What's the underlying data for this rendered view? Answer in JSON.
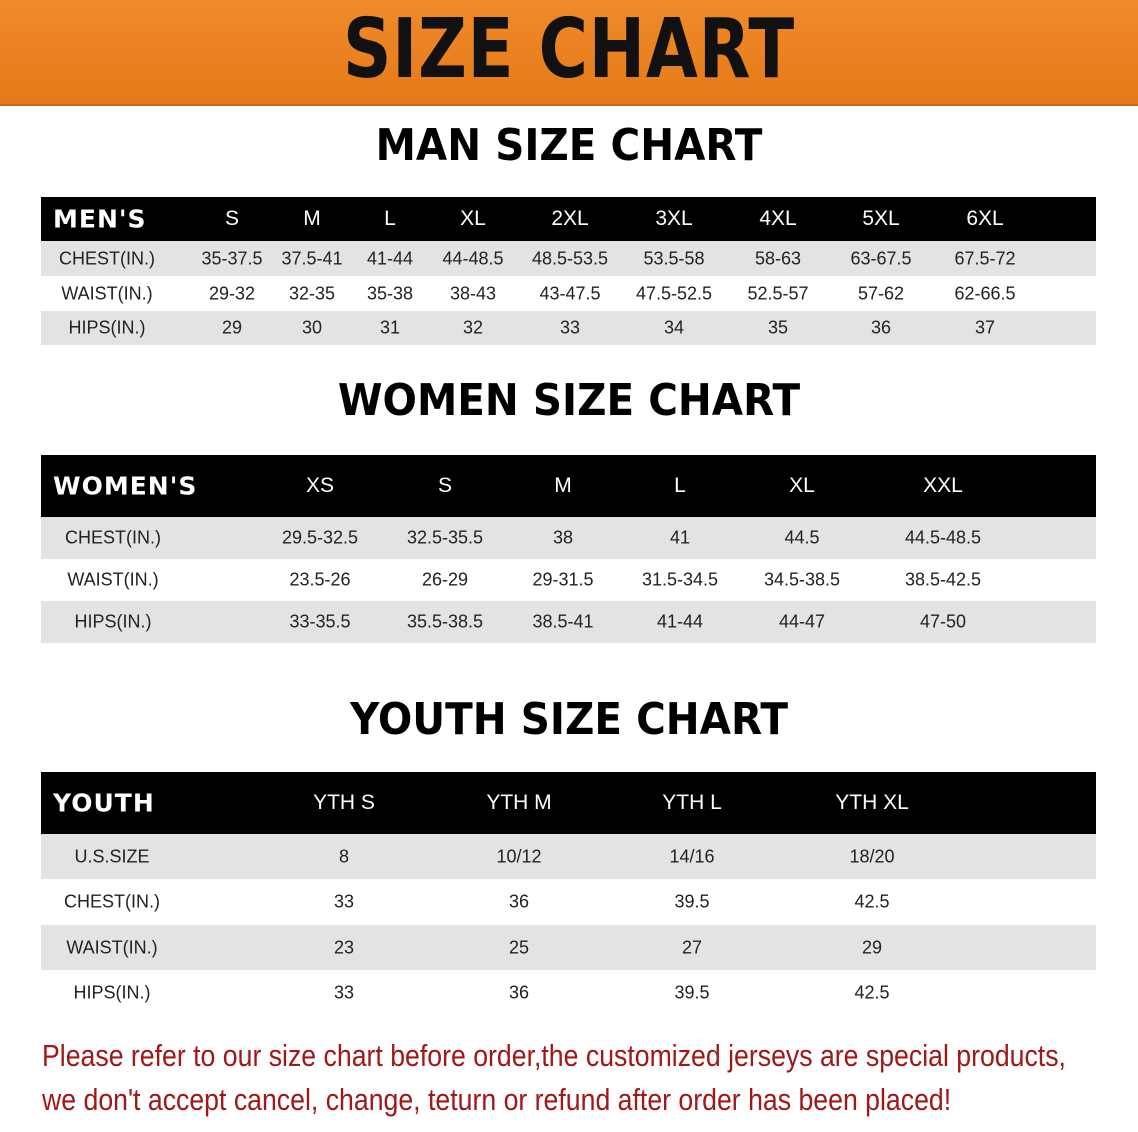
{
  "banner": {
    "title": "SIZE CHART",
    "color": "#e8801e"
  },
  "men": {
    "title": "MAN SIZE CHART",
    "header": [
      "MEN'S",
      "S",
      "M",
      "L",
      "XL",
      "2XL",
      "3XL",
      "4XL",
      "5XL",
      "6XL"
    ],
    "rows": [
      [
        "CHEST(IN.)",
        "35-37.5",
        "37.5-41",
        "41-44",
        "44-48.5",
        "48.5-53.5",
        "53.5-58",
        "58-63",
        "63-67.5",
        "67.5-72"
      ],
      [
        "WAIST(IN.)",
        "29-32",
        "32-35",
        "35-38",
        "38-43",
        "43-47.5",
        "47.5-52.5",
        "52.5-57",
        "57-62",
        "62-66.5"
      ],
      [
        "HIPS(IN.)",
        "29",
        "30",
        "31",
        "32",
        "33",
        "34",
        "35",
        "36",
        "37"
      ]
    ]
  },
  "women": {
    "title": "WOMEN SIZE CHART",
    "header": [
      "WOMEN'S",
      "XS",
      "S",
      "M",
      "L",
      "XL",
      "XXL"
    ],
    "rows": [
      [
        "CHEST(IN.)",
        "29.5-32.5",
        "32.5-35.5",
        "38",
        "41",
        "44.5",
        "44.5-48.5"
      ],
      [
        "WAIST(IN.)",
        "23.5-26",
        "26-29",
        "29-31.5",
        "31.5-34.5",
        "34.5-38.5",
        "38.5-42.5"
      ],
      [
        "HIPS(IN.)",
        "33-35.5",
        "35.5-38.5",
        "38.5-41",
        "41-44",
        "44-47",
        "47-50"
      ]
    ]
  },
  "youth": {
    "title": "YOUTH SIZE CHART",
    "header": [
      "YOUTH",
      "YTH S",
      "YTH M",
      "YTH L",
      "YTH XL"
    ],
    "rows": [
      [
        "U.S.SIZE",
        "8",
        "10/12",
        "14/16",
        "18/20"
      ],
      [
        "CHEST(IN.)",
        "33",
        "36",
        "39.5",
        "42.5"
      ],
      [
        "WAIST(IN.)",
        "23",
        "25",
        "27",
        "29"
      ],
      [
        "HIPS(IN.)",
        "33",
        "36",
        "39.5",
        "42.5"
      ]
    ]
  },
  "notice": {
    "line1": "Please refer to our size chart before order,the customized jerseys are special products,",
    "line2": "we don't accept cancel, change, teturn or refund after order has been placed!",
    "color": "#a01818"
  }
}
